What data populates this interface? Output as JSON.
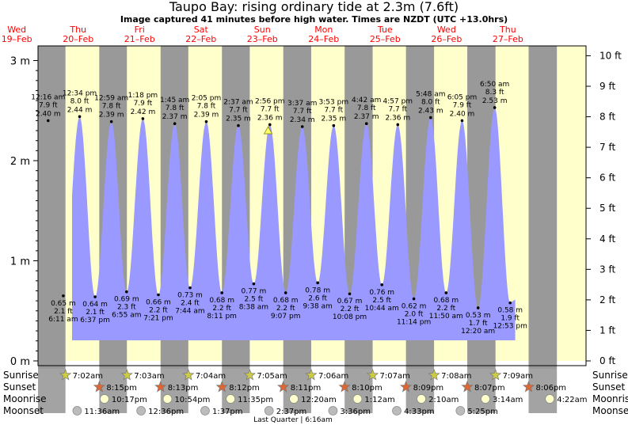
{
  "title": "Taupo Bay: rising  ordinary tide at 2.3m (7.6ft)",
  "subtitle": "Image captured 41 minutes before high water. Times are NZDT (UTC +13.0hrs)",
  "chart_data": {
    "type": "area",
    "y_left_unit": "m",
    "y_left_ticks": [
      "0 m",
      "1 m",
      "2 m",
      "3 m"
    ],
    "y_left_range": [
      0,
      3.1
    ],
    "y_right_ticks": [
      "0 ft",
      "1 ft",
      "2 ft",
      "3 ft",
      "4 ft",
      "5 ft",
      "6 ft",
      "7 ft",
      "8 ft",
      "9 ft",
      "10 ft"
    ],
    "days": [
      {
        "weekday": "Wed",
        "date": "19–Feb"
      },
      {
        "weekday": "Thu",
        "date": "20–Feb"
      },
      {
        "weekday": "Fri",
        "date": "21–Feb"
      },
      {
        "weekday": "Sat",
        "date": "22–Feb"
      },
      {
        "weekday": "Sun",
        "date": "23–Feb"
      },
      {
        "weekday": "Mon",
        "date": "24–Feb"
      },
      {
        "weekday": "Tue",
        "date": "25–Feb"
      },
      {
        "weekday": "Wed",
        "date": "26–Feb"
      },
      {
        "weekday": "Thu",
        "date": "27–Feb"
      }
    ],
    "highs": [
      {
        "time": "12:16 am",
        "ft": "7.9 ft",
        "m": "2.40 m",
        "h": 2.4
      },
      {
        "time": "12:34 pm",
        "ft": "8.0 ft",
        "m": "2.44 m",
        "h": 2.44
      },
      {
        "time": "12:59 am",
        "ft": "7.8 ft",
        "m": "2.39 m",
        "h": 2.39
      },
      {
        "time": "1:18 pm",
        "ft": "7.9 ft",
        "m": "2.42 m",
        "h": 2.42
      },
      {
        "time": "1:45 am",
        "ft": "7.8 ft",
        "m": "2.37 m",
        "h": 2.37
      },
      {
        "time": "2:05 pm",
        "ft": "7.8 ft",
        "m": "2.39 m",
        "h": 2.39
      },
      {
        "time": "2:37 am",
        "ft": "7.7 ft",
        "m": "2.35 m",
        "h": 2.35
      },
      {
        "time": "2:56 pm",
        "ft": "7.7 ft",
        "m": "2.36 m",
        "h": 2.36
      },
      {
        "time": "3:37 am",
        "ft": "7.7 ft",
        "m": "2.34 m",
        "h": 2.34
      },
      {
        "time": "3:53 pm",
        "ft": "7.7 ft",
        "m": "2.35 m",
        "h": 2.35
      },
      {
        "time": "4:42 am",
        "ft": "7.8 ft",
        "m": "2.37 m",
        "h": 2.37
      },
      {
        "time": "4:57 pm",
        "ft": "7.7 ft",
        "m": "2.36 m",
        "h": 2.36
      },
      {
        "time": "5:48 am",
        "ft": "8.0 ft",
        "m": "2.43 m",
        "h": 2.43
      },
      {
        "time": "6:05 pm",
        "ft": "7.9 ft",
        "m": "2.40 m",
        "h": 2.4
      },
      {
        "time": "6:50 am",
        "ft": "8.3 ft",
        "m": "2.53 m",
        "h": 2.53
      }
    ],
    "lows": [
      {
        "time": "6:11 am",
        "ft": "2.1 ft",
        "m": "0.65 m",
        "h": 0.65
      },
      {
        "time": "6:37 pm",
        "ft": "2.1 ft",
        "m": "0.64 m",
        "h": 0.64
      },
      {
        "time": "6:55 am",
        "ft": "2.3 ft",
        "m": "0.69 m",
        "h": 0.69
      },
      {
        "time": "7:21 pm",
        "ft": "2.2 ft",
        "m": "0.66 m",
        "h": 0.66
      },
      {
        "time": "7:44 am",
        "ft": "2.4 ft",
        "m": "0.73 m",
        "h": 0.73
      },
      {
        "time": "8:11 pm",
        "ft": "2.2 ft",
        "m": "0.68 m",
        "h": 0.68
      },
      {
        "time": "8:38 am",
        "ft": "2.5 ft",
        "m": "0.77 m",
        "h": 0.77
      },
      {
        "time": "9:07 pm",
        "ft": "2.2 ft",
        "m": "0.68 m",
        "h": 0.68
      },
      {
        "time": "9:38 am",
        "ft": "2.6 ft",
        "m": "0.78 m",
        "h": 0.78
      },
      {
        "time": "10:08 pm",
        "ft": "2.2 ft",
        "m": "0.67 m",
        "h": 0.67
      },
      {
        "time": "10:44 am",
        "ft": "2.5 ft",
        "m": "0.76 m",
        "h": 0.76
      },
      {
        "time": "11:14 pm",
        "ft": "2.0 ft",
        "m": "0.62 m",
        "h": 0.62
      },
      {
        "time": "11:50 am",
        "ft": "2.2 ft",
        "m": "0.68 m",
        "h": 0.68
      },
      {
        "time": "12:20 am",
        "ft": "1.7 ft",
        "m": "0.53 m",
        "h": 0.53
      },
      {
        "time": "12:53 pm",
        "ft": "1.9 ft",
        "m": "0.58 m",
        "h": 0.58
      }
    ],
    "sunrise": [
      "7:02am",
      "7:03am",
      "7:04am",
      "7:05am",
      "7:06am",
      "7:07am",
      "7:08am",
      "7:09am"
    ],
    "sunset": [
      "8:15pm",
      "8:13pm",
      "8:12pm",
      "8:11pm",
      "8:10pm",
      "8:09pm",
      "8:07pm",
      "8:06pm"
    ],
    "moonrise": [
      "10:17pm",
      "10:54pm",
      "11:35pm",
      "12:20am",
      "1:12am",
      "2:10am",
      "3:14am",
      "4:22am"
    ],
    "moonset": [
      "11:36am",
      "12:36pm",
      "1:37pm",
      "2:37pm",
      "3:36pm",
      "4:33pm",
      "5:25pm"
    ],
    "row_labels": {
      "sunrise": "Sunrise",
      "sunset": "Sunset",
      "moonrise": "Moonrise",
      "moonset": "Moonset"
    },
    "moon_phase": "Last Quarter | 6:16am",
    "current_height_m": 2.3,
    "colors": {
      "day": "#ffffcc",
      "night": "#999999",
      "water": "#9999ff",
      "sun": "#cccc44",
      "sunset": "#dd6633",
      "moon_phase": "#ff0000"
    }
  }
}
